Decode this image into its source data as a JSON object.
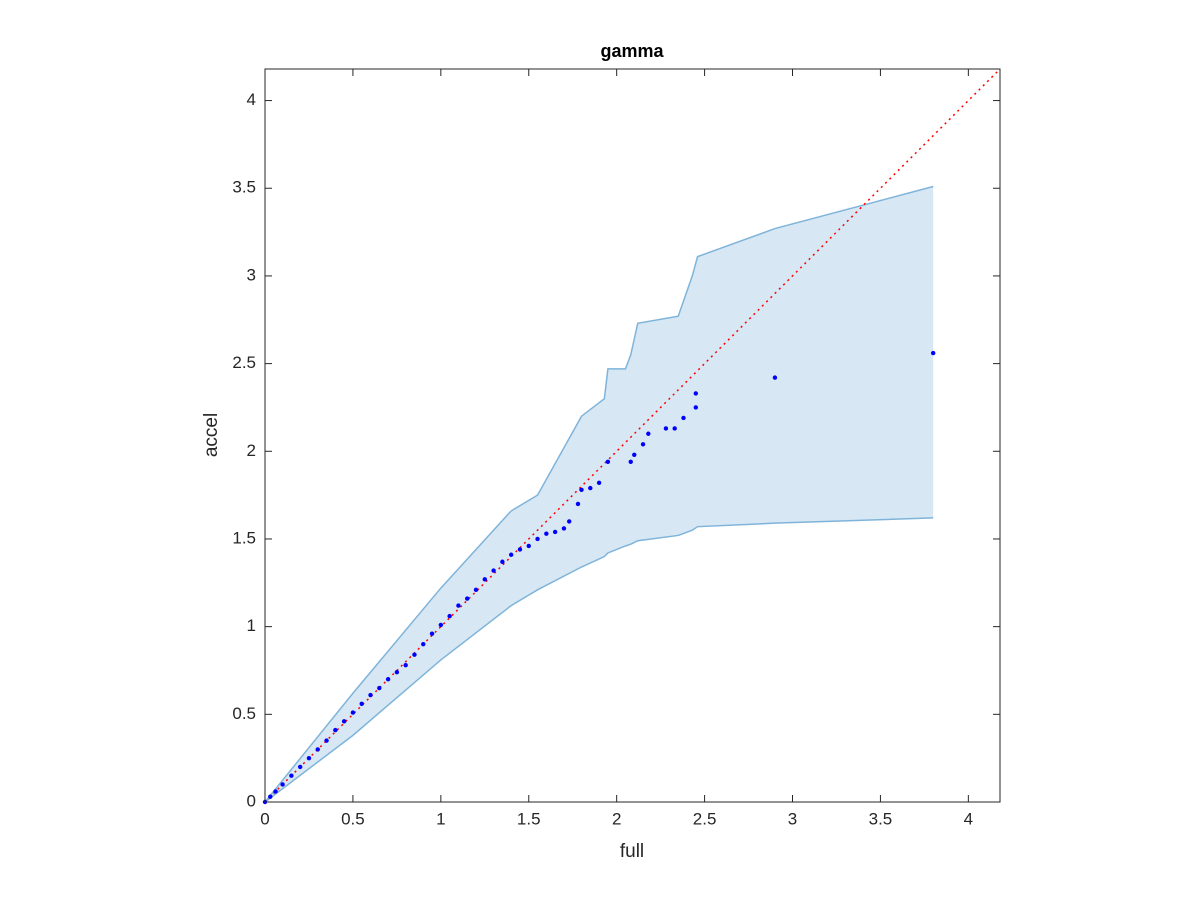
{
  "chart_data": {
    "type": "scatter",
    "title": "gamma",
    "x_label": "full",
    "y_label": "accel",
    "x": [
      0,
      0.03,
      0.06,
      0.1,
      0.15,
      0.2,
      0.25,
      0.3,
      0.35,
      0.4,
      0.45,
      0.5,
      0.55,
      0.6,
      0.65,
      0.7,
      0.75,
      0.8,
      0.85,
      0.9,
      0.95,
      1.0,
      1.05,
      1.1,
      1.15,
      1.2,
      1.25,
      1.3,
      1.35,
      1.4,
      1.45,
      1.5,
      1.55,
      1.6,
      1.65,
      1.7,
      1.73,
      1.78,
      1.8,
      1.85,
      1.9,
      1.95,
      2.08,
      2.1,
      2.15,
      2.18,
      2.28,
      2.33,
      2.38,
      2.45,
      2.45,
      2.9,
      3.8
    ],
    "y": [
      0,
      0.03,
      0.06,
      0.1,
      0.15,
      0.2,
      0.25,
      0.3,
      0.35,
      0.41,
      0.46,
      0.51,
      0.56,
      0.61,
      0.65,
      0.7,
      0.74,
      0.78,
      0.84,
      0.9,
      0.96,
      1.01,
      1.06,
      1.12,
      1.16,
      1.21,
      1.27,
      1.32,
      1.37,
      1.41,
      1.44,
      1.46,
      1.5,
      1.53,
      1.54,
      1.56,
      1.6,
      1.7,
      1.78,
      1.79,
      1.82,
      1.94,
      1.94,
      1.98,
      2.04,
      2.1,
      2.13,
      2.13,
      2.19,
      2.25,
      2.33,
      2.42,
      2.56
    ],
    "color": "#0000ff",
    "band": {
      "x": [
        0,
        0.5,
        1.0,
        1.4,
        1.55,
        1.8,
        1.93,
        1.95,
        2.05,
        2.08,
        2.12,
        2.35,
        2.43,
        2.46,
        2.9,
        3.8
      ],
      "upper": [
        0,
        0.62,
        1.22,
        1.66,
        1.75,
        2.2,
        2.3,
        2.47,
        2.47,
        2.55,
        2.73,
        2.77,
        3.0,
        3.11,
        3.27,
        3.51
      ],
      "lower": [
        0,
        0.38,
        0.81,
        1.12,
        1.21,
        1.34,
        1.4,
        1.42,
        1.46,
        1.47,
        1.49,
        1.52,
        1.55,
        1.57,
        1.59,
        1.62
      ],
      "fill": "#d7e7f4",
      "stroke": "#7fb4da"
    },
    "reference_line": {
      "x": [
        0,
        4.18
      ],
      "y": [
        0,
        4.18
      ],
      "color": "#ff0000"
    },
    "xlim": [
      0,
      4.18
    ],
    "ylim": [
      0,
      4.18
    ],
    "xticks": [
      0,
      0.5,
      1,
      1.5,
      2,
      2.5,
      3,
      3.5,
      4
    ],
    "yticks": [
      0,
      0.5,
      1,
      1.5,
      2,
      2.5,
      3,
      3.5,
      4
    ]
  }
}
